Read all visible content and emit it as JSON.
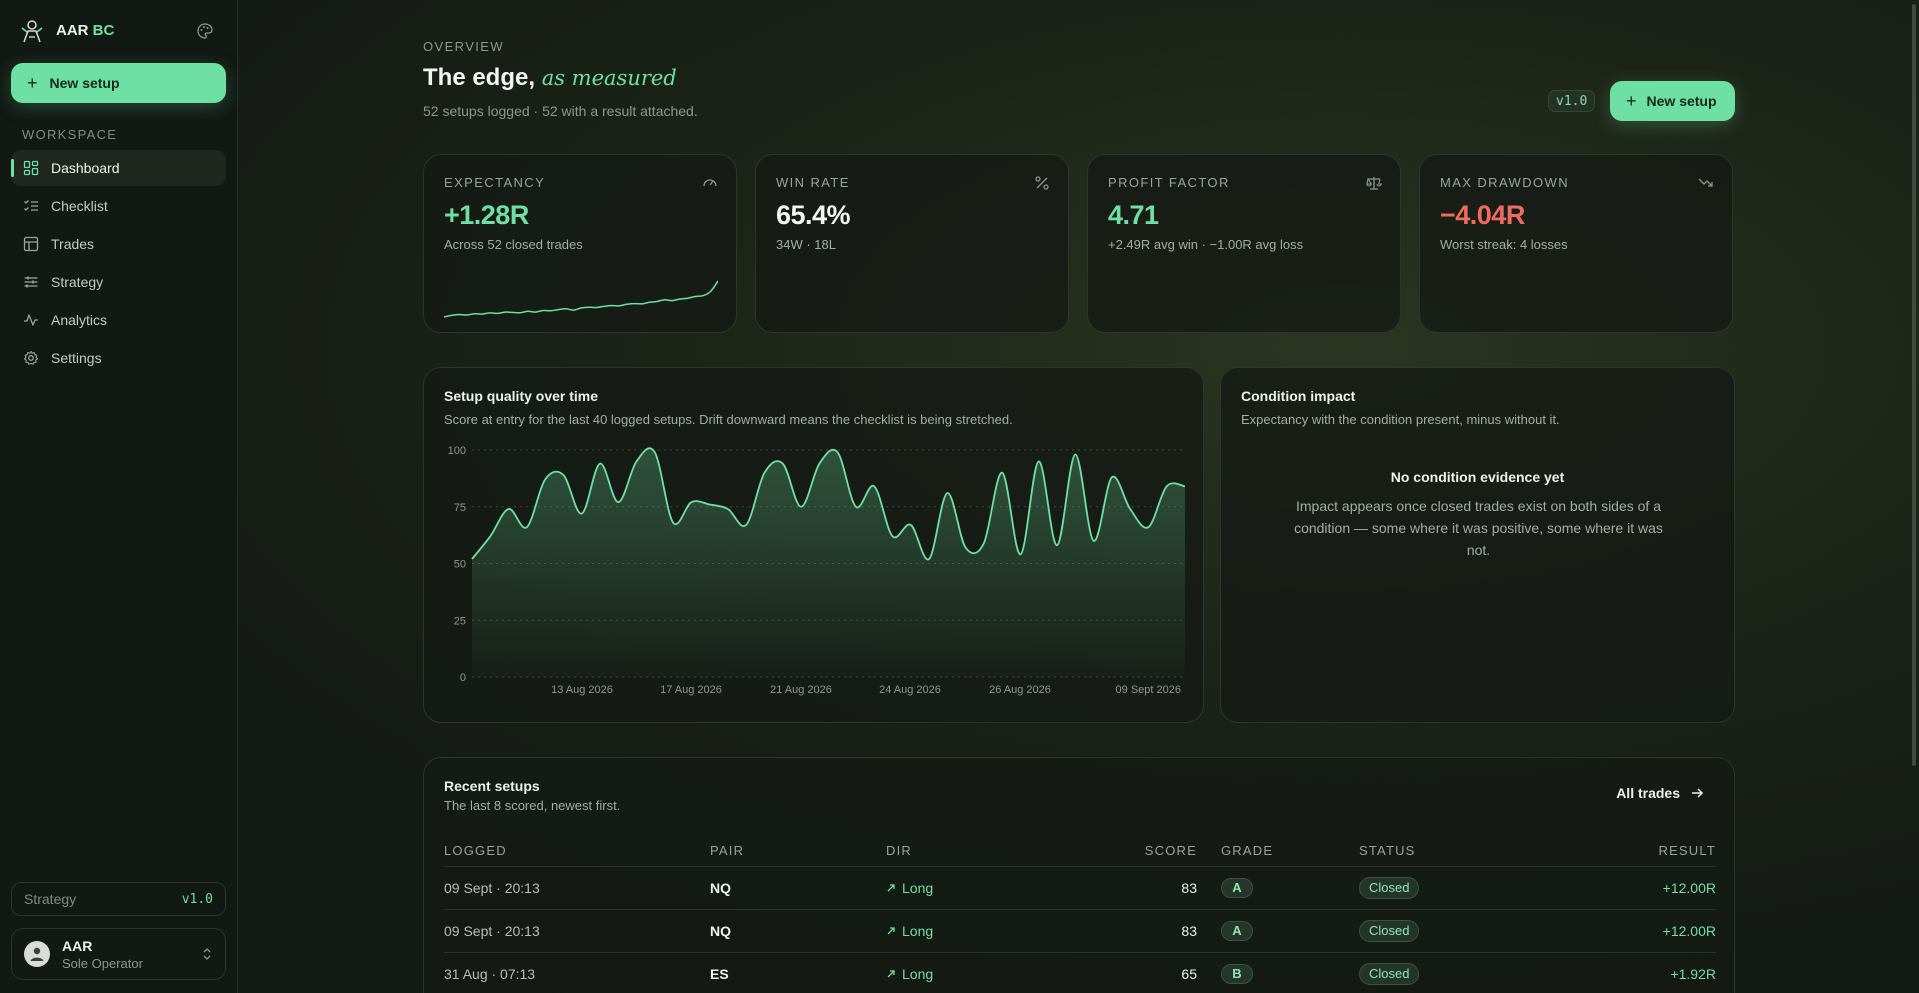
{
  "brand": {
    "name_main": "AAR",
    "name_accent": "BC"
  },
  "sidebar": {
    "new_setup_label": "New setup",
    "section_label": "WORKSPACE",
    "items": [
      {
        "label": "Dashboard",
        "icon": "dashboard-icon",
        "active": true
      },
      {
        "label": "Checklist",
        "icon": "checklist-icon",
        "active": false
      },
      {
        "label": "Trades",
        "icon": "table-icon",
        "active": false
      },
      {
        "label": "Strategy",
        "icon": "sliders-icon",
        "active": false
      },
      {
        "label": "Analytics",
        "icon": "activity-icon",
        "active": false
      },
      {
        "label": "Settings",
        "icon": "gear-icon",
        "active": false
      }
    ],
    "strategy": {
      "label": "Strategy",
      "version": "v1.0"
    },
    "user": {
      "name": "AAR",
      "role": "Sole Operator"
    }
  },
  "header": {
    "eyebrow": "OVERVIEW",
    "title_main": "The edge,",
    "title_italic": "as measured",
    "subtitle": "52 setups logged · 52 with a result attached.",
    "version_badge": "v1.0",
    "new_setup_label": "New setup"
  },
  "kpis": [
    {
      "label": "EXPECTANCY",
      "value": "+1.28R",
      "sub": "Across 52 closed trades",
      "tone": "pos",
      "icon": "gauge-icon"
    },
    {
      "label": "WIN RATE",
      "value": "65.4%",
      "sub": "34W · 18L",
      "tone": "neutral",
      "icon": "percent-icon"
    },
    {
      "label": "PROFIT FACTOR",
      "value": "4.71",
      "sub": "+2.49R avg win · −1.00R avg loss",
      "tone": "pos",
      "icon": "scale-icon"
    },
    {
      "label": "MAX DRAWDOWN",
      "value": "−4.04R",
      "sub": "Worst streak: 4 losses",
      "tone": "neg",
      "icon": "trending-down-icon"
    }
  ],
  "expectancy_spark": [
    0.0,
    0.1,
    0.15,
    0.12,
    0.2,
    0.18,
    0.25,
    0.22,
    0.3,
    0.28,
    0.26,
    0.35,
    0.3,
    0.4,
    0.38,
    0.45,
    0.5,
    0.42,
    0.55,
    0.6,
    0.58,
    0.65,
    0.7,
    0.68,
    0.78,
    0.82,
    0.8,
    0.9,
    0.95,
    1.05,
    1.0,
    1.1,
    1.15,
    1.25,
    1.3,
    1.55,
    2.2
  ],
  "quality_chart": {
    "title": "Setup quality over time",
    "subtitle": "Score at entry for the last 40 logged setups. Drift downward means the checklist is being stretched.",
    "chart_data": {
      "type": "area",
      "title": "Setup quality over time",
      "ylim": [
        0,
        100
      ],
      "yticks": [
        "100",
        "75",
        "50",
        "25",
        "0"
      ],
      "xtick_labels": [
        "13 Aug 2026",
        "17 Aug 2026",
        "21 Aug 2026",
        "24 Aug 2026",
        "26 Aug 2026",
        "09 Sept 2026"
      ],
      "values": [
        52,
        62,
        74,
        66,
        87,
        89,
        72,
        94,
        77,
        95,
        99,
        68,
        77,
        76,
        74,
        67,
        90,
        94,
        75,
        94,
        99,
        75,
        84,
        62,
        67,
        52,
        81,
        57,
        59,
        90,
        54,
        95,
        58,
        98,
        60,
        88,
        74,
        66,
        84,
        84
      ],
      "grid": true
    }
  },
  "impact": {
    "title": "Condition impact",
    "subtitle": "Expectancy with the condition present, minus without it.",
    "empty_title": "No condition evidence yet",
    "empty_text": "Impact appears once closed trades exist on both sides of a condition — some where it was positive, some where it was not."
  },
  "recent": {
    "title": "Recent setups",
    "subtitle": "The last 8 scored, newest first.",
    "all_trades_label": "All trades",
    "columns": {
      "logged": "LOGGED",
      "pair": "PAIR",
      "dir": "DIR",
      "score": "SCORE",
      "grade": "GRADE",
      "status": "STATUS",
      "result": "RESULT"
    },
    "rows": [
      {
        "logged": "09 Sept · 20:13",
        "pair": "NQ",
        "dir": "Long",
        "score": "83",
        "grade": "A",
        "status": "Closed",
        "result": "+12.00R"
      },
      {
        "logged": "09 Sept · 20:13",
        "pair": "NQ",
        "dir": "Long",
        "score": "83",
        "grade": "A",
        "status": "Closed",
        "result": "+12.00R"
      },
      {
        "logged": "31 Aug · 07:13",
        "pair": "ES",
        "dir": "Long",
        "score": "65",
        "grade": "B",
        "status": "Closed",
        "result": "+1.92R"
      }
    ]
  },
  "colors": {
    "accent": "#6fe0a4",
    "negative": "#ef6b5e",
    "background": "#141a14"
  }
}
